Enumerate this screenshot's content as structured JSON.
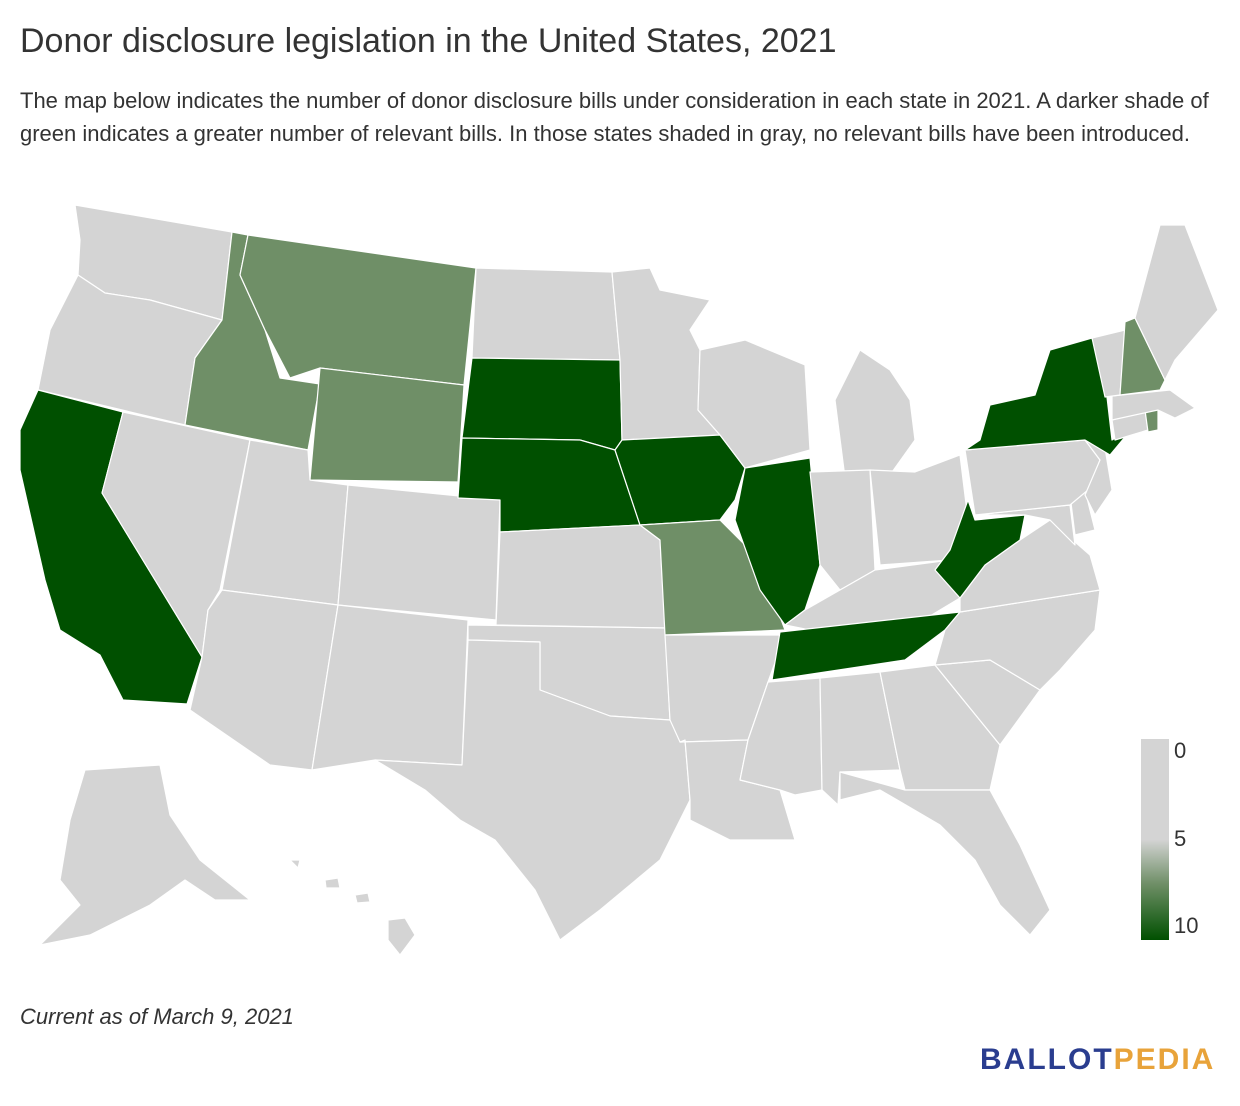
{
  "title": "Donor disclosure legislation in the United States, 2021",
  "subtitle": "The map below indicates the number of donor disclosure bills under consideration in each state in 2021. A darker shade of green indicates a greater number of relevant bills. In those states shaded in gray, no relevant bills have been introduced.",
  "note": "Current as of March 9, 2021",
  "brand": {
    "part1": "BALLOT",
    "part2": "PEDIA"
  },
  "legend": {
    "min_label": "0",
    "mid_label": "5",
    "max_label": "10"
  },
  "colors": {
    "none": "#d4d4d4",
    "medium": "#6f8f67",
    "high": "#005000",
    "brand_blue": "#2a3d8f",
    "brand_orange": "#e8a33a"
  },
  "map_data": {
    "scale": "0 to 10 bills",
    "shading": {
      "Washington": "none",
      "Oregon": "none",
      "California": "high",
      "Nevada": "none",
      "Idaho": "medium",
      "Montana": "medium",
      "Wyoming": "medium",
      "Utah": "none",
      "Arizona": "none",
      "Colorado": "none",
      "New Mexico": "none",
      "North Dakota": "none",
      "South Dakota": "high",
      "Nebraska": "high",
      "Kansas": "none",
      "Oklahoma": "none",
      "Texas": "none",
      "Minnesota": "none",
      "Iowa": "high",
      "Missouri": "medium",
      "Arkansas": "none",
      "Louisiana": "none",
      "Wisconsin": "none",
      "Illinois": "high",
      "Michigan": "none",
      "Indiana": "none",
      "Ohio": "none",
      "Kentucky": "none",
      "Tennessee": "high",
      "Mississippi": "none",
      "Alabama": "none",
      "Georgia": "none",
      "Florida": "none",
      "South Carolina": "none",
      "North Carolina": "none",
      "Virginia": "none",
      "West Virginia": "high",
      "Maryland": "none",
      "Delaware": "none",
      "Pennsylvania": "none",
      "New Jersey": "none",
      "New York": "high",
      "Connecticut": "none",
      "Rhode Island": "medium",
      "Massachusetts": "none",
      "Vermont": "none",
      "New Hampshire": "medium",
      "Maine": "none",
      "Alaska": "none",
      "Hawaii": "none"
    }
  }
}
